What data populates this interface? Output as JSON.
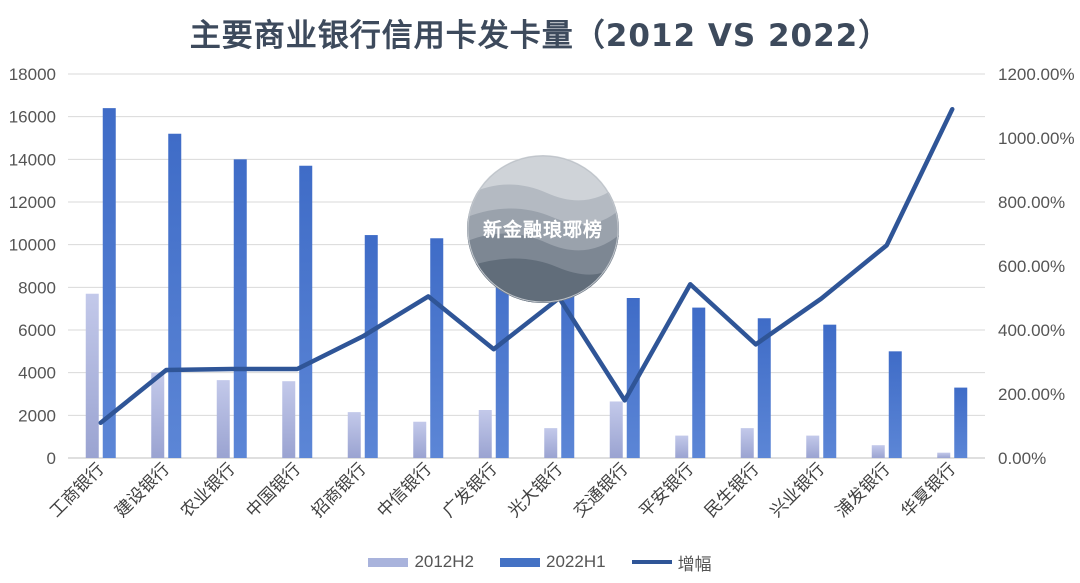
{
  "chart_data": {
    "type": "bar",
    "title": "主要商业银行信用卡发卡量（2012 VS 2022）",
    "categories": [
      "工商银行",
      "建设银行",
      "农业银行",
      "中国银行",
      "招商银行",
      "中信银行",
      "广发银行",
      "光大银行",
      "交通银行",
      "平安银行",
      "民生银行",
      "兴业银行",
      "浦发银行",
      "华夏银行"
    ],
    "series": [
      {
        "name": "2012H2",
        "type": "bar",
        "axis": "left",
        "color": "#a9b3dc",
        "values": [
          7700,
          4000,
          3650,
          3600,
          2150,
          1700,
          2250,
          1400,
          2650,
          1050,
          1400,
          1050,
          600,
          250
        ]
      },
      {
        "name": "2022H1",
        "type": "bar",
        "axis": "left",
        "color": "#4472c4",
        "values": [
          16400,
          15200,
          14000,
          13700,
          10450,
          10300,
          10100,
          8700,
          7500,
          7050,
          6550,
          6250,
          5000,
          3300
        ]
      },
      {
        "name": "增幅",
        "type": "line",
        "axis": "right",
        "color": "#2f5597",
        "values": [
          1.1,
          2.75,
          2.78,
          2.78,
          3.8,
          5.05,
          3.4,
          5.0,
          1.8,
          5.43,
          3.55,
          4.98,
          6.65,
          10.9
        ]
      }
    ],
    "y_left": {
      "min": 0,
      "max": 18000,
      "step": 2000,
      "ticks": [
        "0",
        "2000",
        "4000",
        "6000",
        "8000",
        "10000",
        "12000",
        "14000",
        "16000",
        "18000"
      ]
    },
    "y_right": {
      "min": 0,
      "max": 12,
      "step": 2,
      "ticks": [
        "0.00%",
        "200.00%",
        "400.00%",
        "600.00%",
        "800.00%",
        "1000.00%",
        "1200.00%"
      ]
    },
    "grid": true,
    "legend_position": "bottom"
  },
  "watermark": {
    "text": "新金融琅琊榜"
  }
}
